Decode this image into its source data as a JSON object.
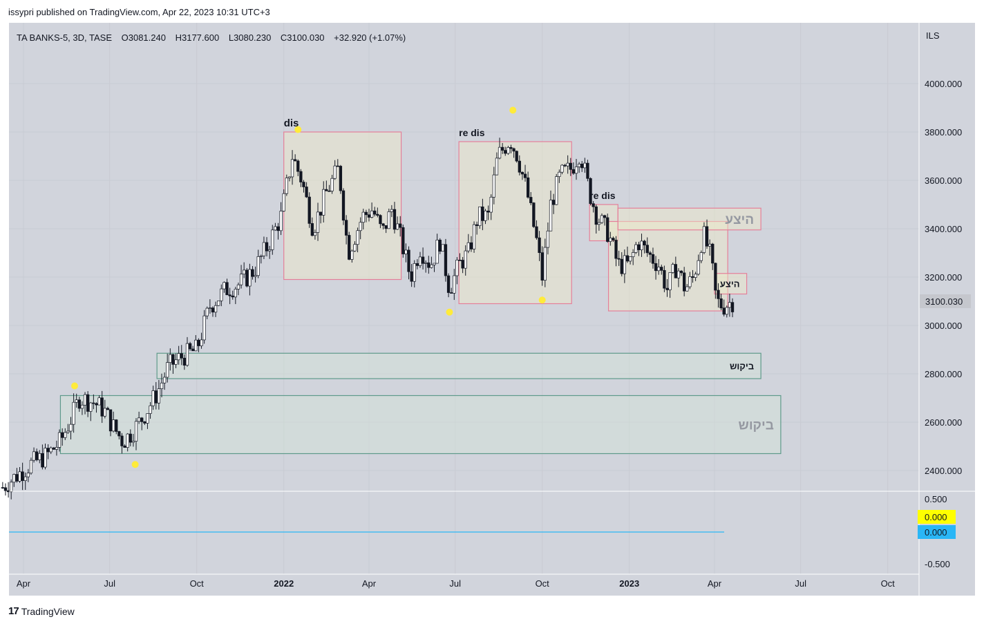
{
  "publish_line": "issypri published on TradingView.com, Apr 22, 2023 10:31 UTC+3",
  "footer": {
    "logo_glyph": "17",
    "brand": "TradingView"
  },
  "colors": {
    "pane_bg": "#d1d4dc",
    "grid": "#c8cbd3",
    "candle_up": "#ffffff",
    "candle_down": "#131722",
    "box_pink": "#e57f99",
    "box_green": "#5e9a8a",
    "marker": "#ffeb3b",
    "label_yellow": "#ffff00",
    "label_blue": "#29b6f6",
    "last_price_bg": "#c5c7cd"
  },
  "chart_data": {
    "type": "candlestick",
    "symbol_line": {
      "symbol": "TA BANKS-5, 3D, TASE",
      "open": "O3081.240",
      "high": "H3177.600",
      "low": "L3080.230",
      "close": "C3100.030",
      "change": "+32.920 (+1.07%)"
    },
    "currency": "ILS",
    "y_axis": {
      "ticks": [
        "4000.000",
        "3800.000",
        "3600.000",
        "3400.000",
        "3200.000",
        "3000.000",
        "2800.000",
        "2600.000",
        "2400.000"
      ],
      "ylim": [
        2320,
        4230
      ]
    },
    "last_price": "3100.030",
    "x_axis": {
      "ticks": [
        {
          "label": "Apr",
          "date": "2021-04-01",
          "bold": false
        },
        {
          "label": "Jul",
          "date": "2021-07-01",
          "bold": false
        },
        {
          "label": "Oct",
          "date": "2021-10-01",
          "bold": false
        },
        {
          "label": "2022",
          "date": "2022-01-01",
          "bold": true
        },
        {
          "label": "Apr",
          "date": "2022-04-01",
          "bold": false
        },
        {
          "label": "Jul",
          "date": "2022-07-01",
          "bold": false
        },
        {
          "label": "Oct",
          "date": "2022-10-01",
          "bold": false
        },
        {
          "label": "2023",
          "date": "2023-01-01",
          "bold": true
        },
        {
          "label": "Apr",
          "date": "2023-04-01",
          "bold": false
        },
        {
          "label": "Jul",
          "date": "2023-07-01",
          "bold": false
        },
        {
          "label": "Oct",
          "date": "2023-10-01",
          "bold": false
        }
      ]
    },
    "price_path": [
      [
        "2021-03-10",
        2330
      ],
      [
        "2021-03-25",
        2380
      ],
      [
        "2021-04-10",
        2430
      ],
      [
        "2021-04-25",
        2460
      ],
      [
        "2021-05-10",
        2520
      ],
      [
        "2021-05-22",
        2620
      ],
      [
        "2021-05-30",
        2700
      ],
      [
        "2021-06-15",
        2680
      ],
      [
        "2021-06-25",
        2650
      ],
      [
        "2021-07-05",
        2580
      ],
      [
        "2021-07-15",
        2520
      ],
      [
        "2021-07-25",
        2560
      ],
      [
        "2021-08-05",
        2620
      ],
      [
        "2021-08-20",
        2720
      ],
      [
        "2021-09-01",
        2830
      ],
      [
        "2021-09-15",
        2870
      ],
      [
        "2021-10-01",
        2900
      ],
      [
        "2021-10-15",
        3080
      ],
      [
        "2021-11-01",
        3150
      ],
      [
        "2021-11-15",
        3170
      ],
      [
        "2021-12-01",
        3230
      ],
      [
        "2021-12-15",
        3330
      ],
      [
        "2021-12-29",
        3450
      ],
      [
        "2022-01-10",
        3700
      ],
      [
        "2022-01-20",
        3600
      ],
      [
        "2022-02-01",
        3400
      ],
      [
        "2022-02-15",
        3550
      ],
      [
        "2022-02-28",
        3650
      ],
      [
        "2022-03-10",
        3300
      ],
      [
        "2022-03-25",
        3450
      ],
      [
        "2022-04-05",
        3480
      ],
      [
        "2022-04-15",
        3380
      ],
      [
        "2022-04-25",
        3480
      ],
      [
        "2022-05-05",
        3350
      ],
      [
        "2022-05-15",
        3200
      ],
      [
        "2022-05-25",
        3320
      ],
      [
        "2022-06-05",
        3250
      ],
      [
        "2022-06-15",
        3350
      ],
      [
        "2022-06-25",
        3150
      ],
      [
        "2022-07-05",
        3250
      ],
      [
        "2022-07-15",
        3300
      ],
      [
        "2022-07-25",
        3450
      ],
      [
        "2022-08-05",
        3450
      ],
      [
        "2022-08-15",
        3700
      ],
      [
        "2022-08-28",
        3770
      ],
      [
        "2022-09-05",
        3700
      ],
      [
        "2022-09-15",
        3550
      ],
      [
        "2022-09-25",
        3350
      ],
      [
        "2022-10-01",
        3200
      ],
      [
        "2022-10-10",
        3500
      ],
      [
        "2022-10-20",
        3620
      ],
      [
        "2022-11-01",
        3650
      ],
      [
        "2022-11-10",
        3720
      ],
      [
        "2022-11-20",
        3550
      ],
      [
        "2022-11-28",
        3450
      ],
      [
        "2022-12-10",
        3380
      ],
      [
        "2022-12-20",
        3250
      ],
      [
        "2023-01-01",
        3250
      ],
      [
        "2023-01-10",
        3350
      ],
      [
        "2023-01-20",
        3300
      ],
      [
        "2023-02-01",
        3250
      ],
      [
        "2023-02-10",
        3150
      ],
      [
        "2023-02-20",
        3250
      ],
      [
        "2023-03-01",
        3150
      ],
      [
        "2023-03-10",
        3200
      ],
      [
        "2023-03-20",
        3380
      ],
      [
        "2023-03-28",
        3280
      ],
      [
        "2023-04-03",
        3100
      ],
      [
        "2023-04-10",
        3080
      ],
      [
        "2023-04-20",
        3100
      ]
    ],
    "boxes": [
      {
        "name": "dis-zone",
        "from": "2022-01-01",
        "to": "2022-05-05",
        "high": 3800,
        "low": 3190,
        "style": "pink",
        "label": "dis"
      },
      {
        "name": "re-dis-zone-1",
        "from": "2022-07-05",
        "to": "2022-11-01",
        "high": 3760,
        "low": 3090,
        "style": "pink",
        "label": "re dis"
      },
      {
        "name": "re-dis-zone-2",
        "from": "2022-11-20",
        "to": "2022-12-20",
        "high": 3500,
        "low": 3350,
        "style": "pink",
        "label": "re dis"
      },
      {
        "name": "range-zone",
        "from": "2022-12-10",
        "to": "2023-04-15",
        "high": 3430,
        "low": 3060,
        "style": "pink"
      },
      {
        "name": "supply-zone-1",
        "from": "2022-12-20",
        "to": "2023-05-20",
        "high": 3485,
        "low": 3395,
        "style": "pink",
        "label": "היצע"
      },
      {
        "name": "supply-zone-2",
        "from": "2023-04-01",
        "to": "2023-05-05",
        "high": 3215,
        "low": 3130,
        "style": "pink",
        "label": "היצע"
      },
      {
        "name": "demand-zone-1",
        "from": "2021-08-20",
        "to": "2023-05-20",
        "high": 2885,
        "low": 2780,
        "style": "green",
        "label": "ביקוש"
      },
      {
        "name": "demand-zone-2",
        "from": "2021-05-10",
        "to": "2023-06-10",
        "high": 2710,
        "low": 2470,
        "style": "green",
        "label": "ביקוש"
      }
    ],
    "markers": [
      {
        "date": "2021-05-25",
        "price": 2750
      },
      {
        "date": "2021-07-28",
        "price": 2425
      },
      {
        "date": "2022-01-16",
        "price": 3810
      },
      {
        "date": "2022-06-25",
        "price": 3055
      },
      {
        "date": "2022-08-31",
        "price": 3890
      },
      {
        "date": "2022-10-01",
        "price": 3105
      }
    ],
    "oscillator": {
      "ticks": [
        "0.500",
        "-0.500"
      ],
      "labels": [
        {
          "value": "0.000",
          "color": "yellow"
        },
        {
          "value": "0.000",
          "color": "blue"
        }
      ]
    }
  }
}
